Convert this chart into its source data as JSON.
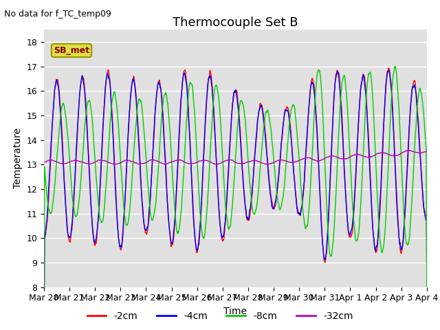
{
  "title": "Thermocouple Set B",
  "no_data_text": "No data for f_TC_temp09",
  "xlabel": "Time",
  "ylabel": "Temperature",
  "ylim": [
    8.0,
    18.5
  ],
  "yticks": [
    8.0,
    9.0,
    10.0,
    11.0,
    12.0,
    13.0,
    14.0,
    15.0,
    16.0,
    17.0,
    18.0
  ],
  "legend_labels": [
    "-2cm",
    "-4cm",
    "-8cm",
    "-32cm"
  ],
  "legend_colors": [
    "#ff0000",
    "#0000ff",
    "#00cc00",
    "#bb00bb"
  ],
  "background_color": "#e0e0e0",
  "figure_background": "#ffffff",
  "sb_met_box_color": "#dddd44",
  "sb_met_text_color": "#880000",
  "title_fontsize": 13,
  "label_fontsize": 10,
  "tick_fontsize": 9,
  "tick_labels": [
    "Mar 20",
    "Mar 21",
    "Mar 22",
    "Mar 23",
    "Mar 24",
    "Mar 25",
    "Mar 26",
    "Mar 27",
    "Mar 28",
    "Mar 29",
    "Mar 30",
    "Mar 31",
    "Apr 1",
    "Apr 2",
    "Apr 3",
    "Apr 4"
  ]
}
